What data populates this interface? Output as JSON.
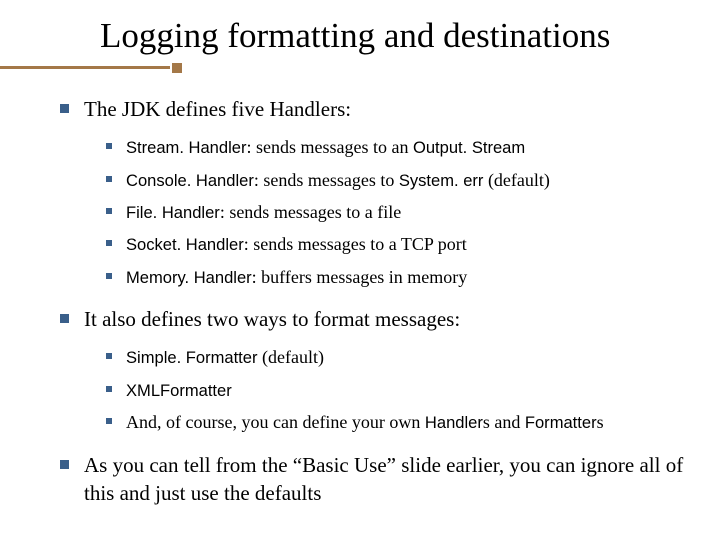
{
  "title": "Logging formatting and destinations",
  "colors": {
    "accent": "#a47848",
    "bullet": "#3a5f8a",
    "text": "#000000",
    "background": "#ffffff"
  },
  "typography": {
    "title_fontsize": 35,
    "lvl1_fontsize": 21,
    "lvl2_fontsize": 18,
    "font_family_serif": "Times New Roman",
    "font_family_sans": "Arial"
  },
  "p1": {
    "text": "The JDK defines five Handlers:",
    "items": [
      {
        "code": "Stream. Handler",
        "rest": ": sends messages to an ",
        "code2": "Output. Stream",
        "tail": ""
      },
      {
        "code": "Console. Handler",
        "rest": ": sends messages to ",
        "code2": "System. err",
        "tail": " (default)"
      },
      {
        "code": "File. Handler",
        "rest": ": sends messages to a file",
        "code2": "",
        "tail": ""
      },
      {
        "code": "Socket. Handler",
        "rest": ": sends messages to a TCP port",
        "code2": "",
        "tail": ""
      },
      {
        "code": "Memory. Handler",
        "rest": ": buffers messages in memory",
        "code2": "",
        "tail": ""
      }
    ]
  },
  "p2": {
    "text": "It also defines two ways to format messages:",
    "items": [
      {
        "code": "Simple. Formatter",
        "rest": " (default)",
        "code2": "",
        "tail": ""
      },
      {
        "code": "XMLFormatter",
        "rest": "",
        "code2": "",
        "tail": ""
      },
      {
        "pre": "And, of course, you can define your own ",
        "code": "Handler",
        "mid": "s and ",
        "code2": "Formatter",
        "tail": "s"
      }
    ]
  },
  "p3": {
    "text": "As you can tell from the “Basic Use” slide earlier, you can ignore all of this and just use the defaults"
  }
}
